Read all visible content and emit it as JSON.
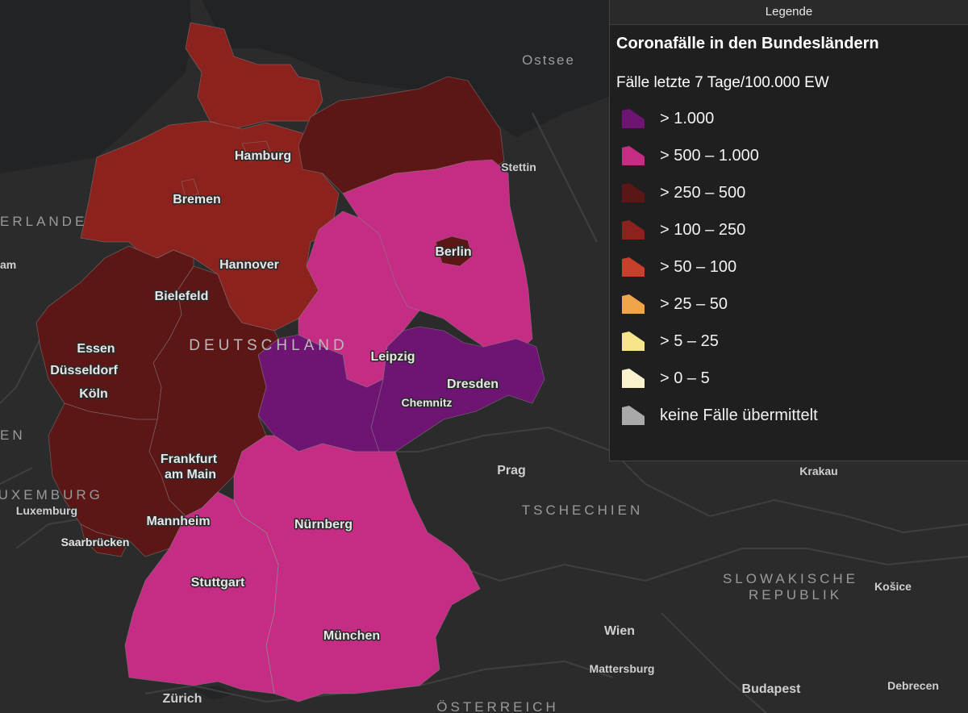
{
  "legend": {
    "header": "Legende",
    "title": "Coronafälle in den Bundesländern",
    "subtitle": "Fälle letzte 7 Tage/100.000 EW",
    "classes": [
      {
        "label": "> 1.000",
        "color": "#6e1473"
      },
      {
        "label": "> 500 – 1.000",
        "color": "#c52c84"
      },
      {
        "label": "> 250 – 500",
        "color": "#5c1615"
      },
      {
        "label": "> 100 – 250",
        "color": "#8b221d"
      },
      {
        "label": "> 50 – 100",
        "color": "#c8402c"
      },
      {
        "label": "> 25 – 50",
        "color": "#f0a54a"
      },
      {
        "label": "> 5 – 25",
        "color": "#f6e58a"
      },
      {
        "label": "> 0 – 5",
        "color": "#fbf2cd"
      },
      {
        "label": "keine Fälle übermittelt",
        "color": "#a9a9a9"
      }
    ]
  },
  "map": {
    "country_label": "DEUTSCHLAND",
    "cities": {
      "hamburg": "Hamburg",
      "bremen": "Bremen",
      "hannover": "Hannover",
      "bielefeld": "Bielefeld",
      "essen": "Essen",
      "duesseldorf": "Düsseldorf",
      "koeln": "Köln",
      "frankfurt_1": "Frankfurt",
      "frankfurt_2": "am Main",
      "mannheim": "Mannheim",
      "saarbruecken": "Saarbrücken",
      "stuttgart": "Stuttgart",
      "nuernberg": "Nürnberg",
      "muenchen": "München",
      "berlin": "Berlin",
      "leipzig": "Leipzig",
      "dresden": "Dresden",
      "chemnitz": "Chemnitz"
    },
    "outside": {
      "ostsee": "Ostsee",
      "stettin": "Stettin",
      "niederlande": "ERLANDE",
      "amsterdam": "am",
      "belgien": "EN",
      "luxemburg_country": "LUXEMBURG",
      "luxemburg_city": "Luxemburg",
      "prag": "Prag",
      "tschechien": "TSCHECHIEN",
      "krakau": "Krakau",
      "slowakei_1": "SLOWAKISCHE",
      "slowakei_2": "REPUBLIK",
      "kosice": "Košice",
      "wien": "Wien",
      "mattersburg": "Mattersburg",
      "budapest": "Budapest",
      "debrecen": "Debrecen",
      "zuerich": "Zürich",
      "oesterreich": "ÖSTERREICH"
    }
  }
}
